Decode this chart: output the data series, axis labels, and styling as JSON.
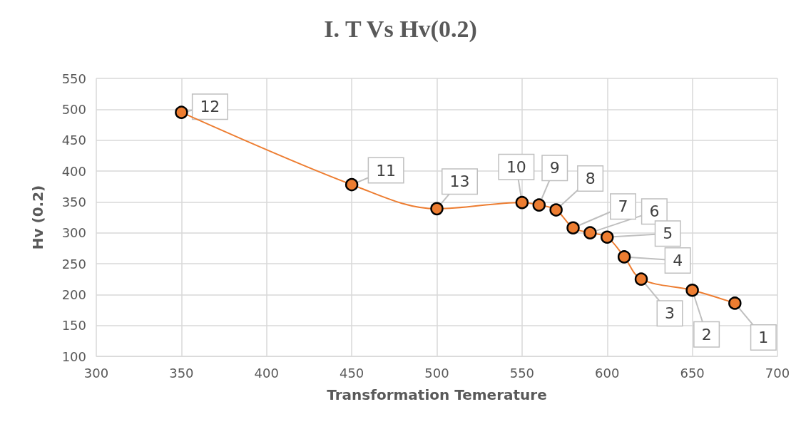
{
  "chart_data": {
    "type": "line",
    "title": "I. T Vs Hv(0.2)",
    "xlabel": "Transformation Temerature",
    "ylabel": "Hv (0.2)",
    "x": [
      350,
      450,
      500,
      550,
      560,
      570,
      580,
      590,
      600,
      610,
      620,
      650,
      675
    ],
    "series": [
      {
        "color": "#ed7d31",
        "values": [
          495,
          378,
          339,
          349,
          345,
          337,
          308,
          300,
          293,
          261,
          225,
          207,
          186
        ]
      }
    ],
    "xlim": [
      300,
      700
    ],
    "xticks": [
      300,
      350,
      400,
      450,
      500,
      550,
      600,
      650,
      700
    ],
    "ylim": [
      100,
      550
    ],
    "yticks": [
      100,
      150,
      200,
      250,
      300,
      350,
      400,
      450,
      500,
      550
    ],
    "grid": true,
    "marker": "circle",
    "line_style": "solid",
    "annotations": [
      {
        "text": "12",
        "x": 350,
        "y": 495
      },
      {
        "text": "11",
        "x": 450,
        "y": 378
      },
      {
        "text": "13",
        "x": 500,
        "y": 339
      },
      {
        "text": "10",
        "x": 550,
        "y": 349
      },
      {
        "text": "9",
        "x": 560,
        "y": 345
      },
      {
        "text": "8",
        "x": 570,
        "y": 337
      },
      {
        "text": "7",
        "x": 580,
        "y": 308
      },
      {
        "text": "6",
        "x": 590,
        "y": 300
      },
      {
        "text": "5",
        "x": 600,
        "y": 293
      },
      {
        "text": "4",
        "x": 610,
        "y": 261
      },
      {
        "text": "3",
        "x": 620,
        "y": 225
      },
      {
        "text": "2",
        "x": 650,
        "y": 207
      },
      {
        "text": "1",
        "x": 675,
        "y": 186
      }
    ]
  }
}
